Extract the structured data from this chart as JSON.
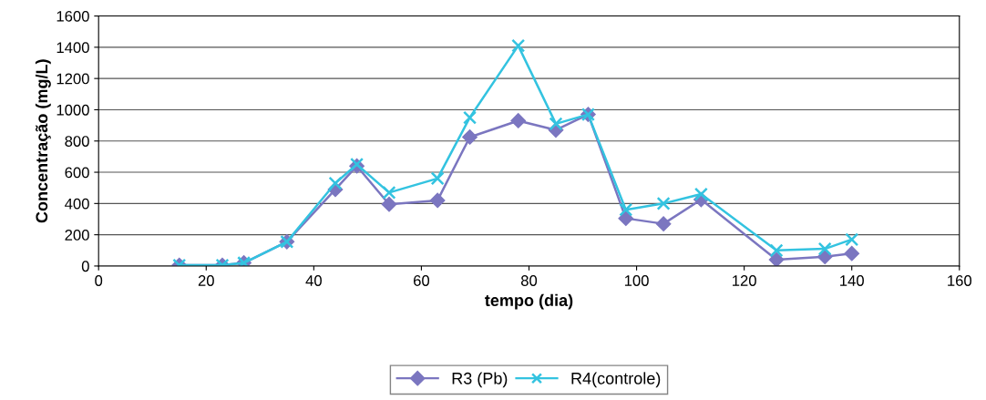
{
  "chart_data": {
    "type": "line",
    "xlabel": "tempo (dia)",
    "ylabel": "Concentração (mg/L)",
    "x": [
      15,
      23,
      27,
      35,
      44,
      48,
      54,
      63,
      69,
      78,
      85,
      91,
      98,
      105,
      112,
      126,
      135,
      140
    ],
    "series": [
      {
        "name": "R3 (Pb)",
        "color": "#7b76c0",
        "marker": "diamond",
        "values": [
          5,
          5,
          20,
          155,
          490,
          640,
          395,
          420,
          825,
          930,
          870,
          970,
          305,
          270,
          425,
          40,
          60,
          80
        ]
      },
      {
        "name": "R4(controle)",
        "color": "#33c3e0",
        "marker": "cross",
        "values": [
          5,
          5,
          20,
          155,
          530,
          650,
          470,
          560,
          950,
          1410,
          910,
          970,
          360,
          400,
          460,
          100,
          110,
          170
        ]
      }
    ],
    "xlim": [
      0,
      160
    ],
    "xticks": [
      0,
      20,
      40,
      60,
      80,
      100,
      120,
      140,
      160
    ],
    "ylim": [
      0,
      1600
    ],
    "yticks": [
      0,
      200,
      400,
      600,
      800,
      1000,
      1200,
      1400,
      1600
    ],
    "grid": "y",
    "legend": "bottom",
    "line_style": "solid"
  }
}
